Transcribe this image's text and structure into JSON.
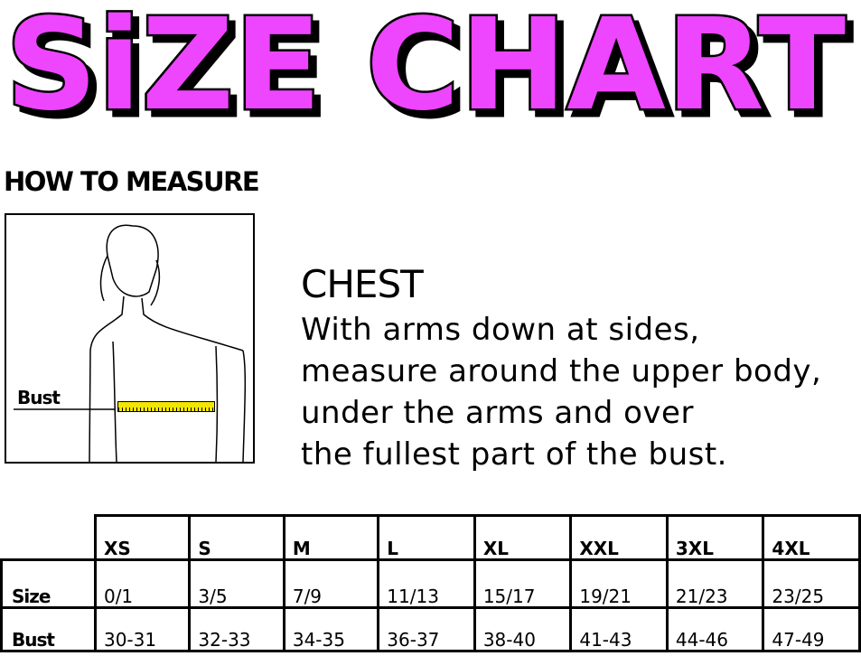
{
  "title": "SiZE CHART",
  "title_color": "#ee44ff",
  "how_to_measure": "HOW TO MEASURE",
  "illustration": {
    "label": "Bust",
    "tape_color": "#f2e600"
  },
  "chest": {
    "heading": "CHEST",
    "lines": [
      "With arms down at sides,",
      "measure around the upper body,",
      "under the arms and over",
      "the fullest part of the bust."
    ]
  },
  "table": {
    "headers": [
      "XS",
      "S",
      "M",
      "L",
      "XL",
      "XXL",
      "3XL",
      "4XL"
    ],
    "rows": [
      {
        "label": "Size",
        "values": [
          "0/1",
          "3/5",
          "7/9",
          "11/13",
          "15/17",
          "19/21",
          "21/23",
          "23/25"
        ]
      },
      {
        "label": "Bust",
        "values": [
          "30-31",
          "32-33",
          "34-35",
          "36-37",
          "38-40",
          "41-43",
          "44-46",
          "47-49"
        ]
      }
    ]
  }
}
